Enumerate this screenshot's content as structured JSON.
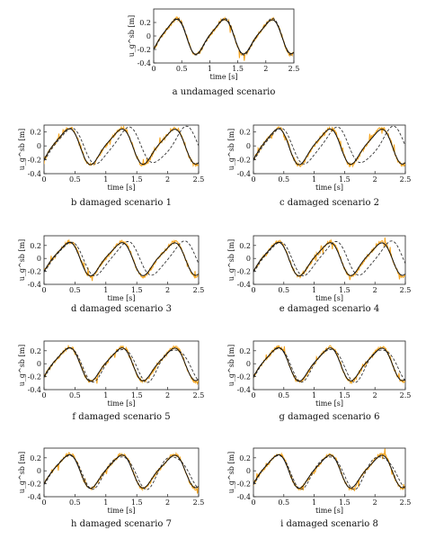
{
  "colors": {
    "measured": "#f5a623",
    "reconstructed": "#111111",
    "reference": "#333333",
    "axis": "#222222"
  },
  "chart_data": [
    {
      "type": "line",
      "caption": "a  undamaged scenario",
      "xlabel": "time  [s]",
      "ylabel": "u_g^sb [m]",
      "xlim": [
        0,
        2.5
      ],
      "ylim": [
        -0.4,
        0.4
      ],
      "xticks": [
        "0",
        "0.5",
        "1",
        "1.5",
        "2",
        "2.5"
      ],
      "yticks": [
        "-0.4",
        "-0.2",
        "0",
        "0.2"
      ],
      "grid": false,
      "damage": 0
    },
    {
      "type": "line",
      "caption": "b  damaged scenario 1",
      "xlabel": "time  [s]",
      "ylabel": "u_g^sb [m]",
      "xlim": [
        0,
        2.5
      ],
      "ylim": [
        -0.4,
        0.3
      ],
      "xticks": [
        "0",
        "0.5",
        "1",
        "1.5",
        "2",
        "2.5"
      ],
      "yticks": [
        "-0.4",
        "-0.2",
        "0",
        "0.2"
      ],
      "grid": false,
      "damage": 1
    },
    {
      "type": "line",
      "caption": "c  damaged scenario 2",
      "xlabel": "time  [s]",
      "ylabel": "u_g^sb [m]",
      "xlim": [
        0,
        2.5
      ],
      "ylim": [
        -0.4,
        0.3
      ],
      "xticks": [
        "0",
        "0.5",
        "1",
        "1.5",
        "2",
        "2.5"
      ],
      "yticks": [
        "-0.4",
        "-0.2",
        "0",
        "0.2"
      ],
      "grid": false,
      "damage": 1
    },
    {
      "type": "line",
      "caption": "d  damaged scenario 3",
      "xlabel": "time  [s]",
      "ylabel": "u_g^sb [m]",
      "xlim": [
        0,
        2.5
      ],
      "ylim": [
        -0.4,
        0.35
      ],
      "xticks": [
        "0",
        "0.5",
        "1",
        "1.5",
        "2",
        "2.5"
      ],
      "yticks": [
        "-0.4",
        "-0.2",
        "0",
        "0.2"
      ],
      "grid": false,
      "damage": 0.8
    },
    {
      "type": "line",
      "caption": "e  damaged scenario 4",
      "xlabel": "time  [s]",
      "ylabel": "u_g^sb [m]",
      "xlim": [
        0,
        2.5
      ],
      "ylim": [
        -0.4,
        0.35
      ],
      "xticks": [
        "0",
        "0.5",
        "1",
        "1.5",
        "2",
        "2.5"
      ],
      "yticks": [
        "-0.4",
        "-0.2",
        "0",
        "0.2"
      ],
      "grid": false,
      "damage": 0.8
    },
    {
      "type": "line",
      "caption": "f  damaged scenario 5",
      "xlabel": "time  [s]",
      "ylabel": "u_g^sb [m]",
      "xlim": [
        0,
        2.5
      ],
      "ylim": [
        -0.4,
        0.35
      ],
      "xticks": [
        "0",
        "0.5",
        "1",
        "1.5",
        "2",
        "2.5"
      ],
      "yticks": [
        "-0.4",
        "-0.2",
        "0",
        "0.2"
      ],
      "grid": false,
      "damage": 0.2
    },
    {
      "type": "line",
      "caption": "g  damaged scenario 6",
      "xlabel": "time  [s]",
      "ylabel": "u_g^sb [m]",
      "xlim": [
        0,
        2.5
      ],
      "ylim": [
        -0.4,
        0.35
      ],
      "xticks": [
        "0",
        "0.5",
        "1",
        "1.5",
        "2",
        "2.5"
      ],
      "yticks": [
        "-0.4",
        "-0.2",
        "0",
        "0.2"
      ],
      "grid": false,
      "damage": 0.2
    },
    {
      "type": "line",
      "caption": "h  damaged scenario 7",
      "xlabel": "time  [s]",
      "ylabel": "u_g^sb [m]",
      "xlim": [
        0,
        2.5
      ],
      "ylim": [
        -0.4,
        0.35
      ],
      "xticks": [
        "0",
        "0.5",
        "1",
        "1.5",
        "2",
        "2.5"
      ],
      "yticks": [
        "-0.4",
        "-0.2",
        "0",
        "0.2"
      ],
      "grid": false,
      "damage": 0.1
    },
    {
      "type": "line",
      "caption": "i  damaged scenario 8",
      "xlabel": "time  [s]",
      "ylabel": "u_g^sb [m]",
      "xlim": [
        0,
        2.5
      ],
      "ylim": [
        -0.4,
        0.35
      ],
      "xticks": [
        "0",
        "0.5",
        "1",
        "1.5",
        "2",
        "2.5"
      ],
      "yticks": [
        "-0.4",
        "-0.2",
        "0",
        "0.2"
      ],
      "grid": false,
      "damage": 0.1
    }
  ]
}
